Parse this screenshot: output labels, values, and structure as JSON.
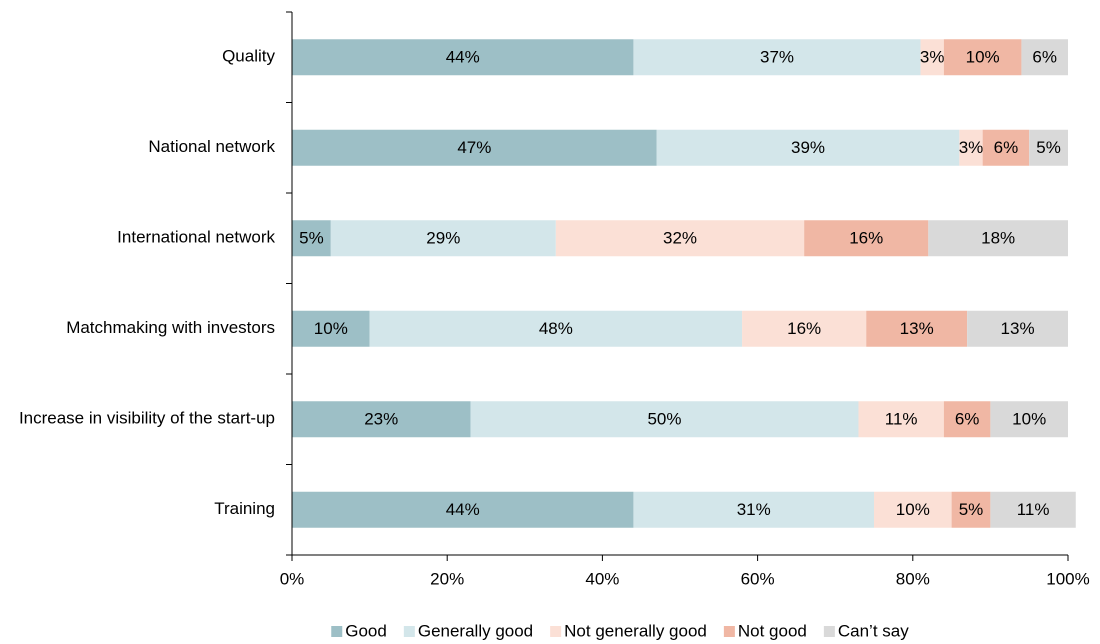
{
  "chart_data": {
    "type": "stacked_hbar",
    "categories": [
      "Quality",
      "National network",
      "International network",
      "Matchmaking with investors",
      "Increase in visibility of the start-up",
      "Training"
    ],
    "series": [
      {
        "name": "Good",
        "color": "#9dbfc6",
        "values": [
          44,
          47,
          5,
          10,
          23,
          44
        ],
        "value_labels": [
          "44%",
          "47%",
          "5%",
          "10%",
          "23%",
          "44%"
        ]
      },
      {
        "name": "Generally good",
        "color": "#d3e6ea",
        "values": [
          37,
          39,
          29,
          48,
          50,
          31
        ],
        "value_labels": [
          "37%",
          "39%",
          "29%",
          "48%",
          "50%",
          "31%"
        ]
      },
      {
        "name": "Not generally good",
        "color": "#fbe0d6",
        "values": [
          3,
          3,
          32,
          16,
          11,
          10
        ],
        "value_labels": [
          "3%",
          "3%",
          "32%",
          "16%",
          "11%",
          "10%"
        ]
      },
      {
        "name": "Not good",
        "color": "#f0b7a4",
        "values": [
          10,
          6,
          16,
          13,
          6,
          5
        ],
        "value_labels": [
          "10%",
          "6%",
          "16%",
          "13%",
          "6%",
          "5%"
        ]
      },
      {
        "name": "Can’t say",
        "color": "#d9d9d9",
        "values": [
          6,
          5,
          18,
          13,
          10,
          11
        ],
        "value_labels": [
          "6%",
          "5%",
          "18%",
          "13%",
          "10%",
          "11%"
        ]
      }
    ],
    "xlim": [
      0,
      100
    ],
    "xticks": [
      {
        "value": 0,
        "label": "0%"
      },
      {
        "value": 20,
        "label": "20%"
      },
      {
        "value": 40,
        "label": "40%"
      },
      {
        "value": 60,
        "label": "60%"
      },
      {
        "value": 80,
        "label": "80%"
      },
      {
        "value": 100,
        "label": "100%"
      }
    ],
    "legend": "bottom"
  }
}
